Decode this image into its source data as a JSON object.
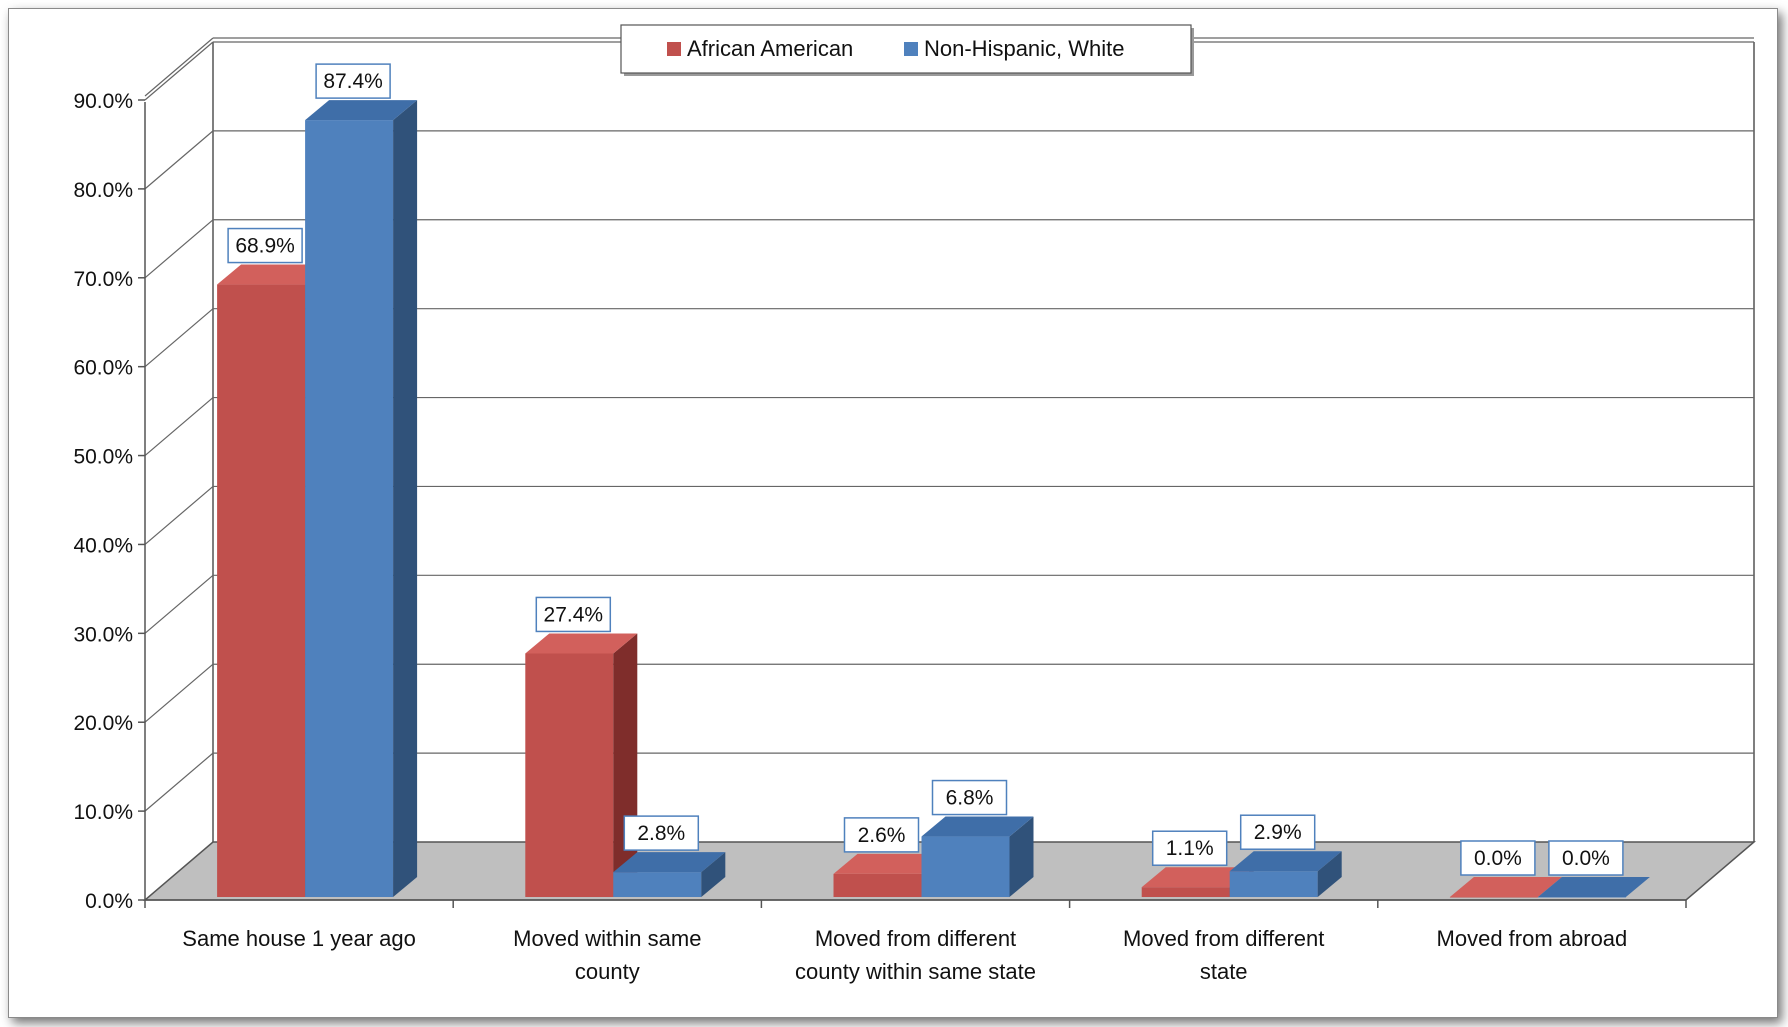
{
  "chart_data": {
    "type": "bar",
    "style": "3d-clustered-column",
    "categories": [
      [
        "Same house 1 year ago"
      ],
      [
        "Moved within same",
        "county"
      ],
      [
        "Moved from different",
        "county within same state"
      ],
      [
        "Moved from different",
        "state"
      ],
      [
        "Moved from abroad"
      ]
    ],
    "series": [
      {
        "name": "African American",
        "values": [
          68.9,
          27.4,
          2.6,
          1.1,
          0.0
        ],
        "data_labels": [
          "68.9%",
          "27.4%",
          "2.6%",
          "1.1%",
          "0.0%"
        ],
        "color": "#c0504d",
        "side_color": "#7f2d2b",
        "top_color": "#d2605c"
      },
      {
        "name": "Non-Hispanic, White",
        "values": [
          87.4,
          2.8,
          6.8,
          2.9,
          0.0
        ],
        "data_labels": [
          "87.4%",
          "2.8%",
          "6.8%",
          "2.9%",
          "0.0%"
        ],
        "color": "#4f81bd",
        "side_color": "#30527a",
        "top_color": "#3f6ea8"
      }
    ],
    "y_ticks": [
      "0.0%",
      "10.0%",
      "20.0%",
      "30.0%",
      "40.0%",
      "50.0%",
      "60.0%",
      "70.0%",
      "80.0%",
      "90.0%"
    ],
    "ylim": [
      0,
      90
    ],
    "title": "",
    "xlabel": "",
    "ylabel": "",
    "grid": true,
    "legend_position": "top-center",
    "floor_color": "#bfbfbf"
  }
}
